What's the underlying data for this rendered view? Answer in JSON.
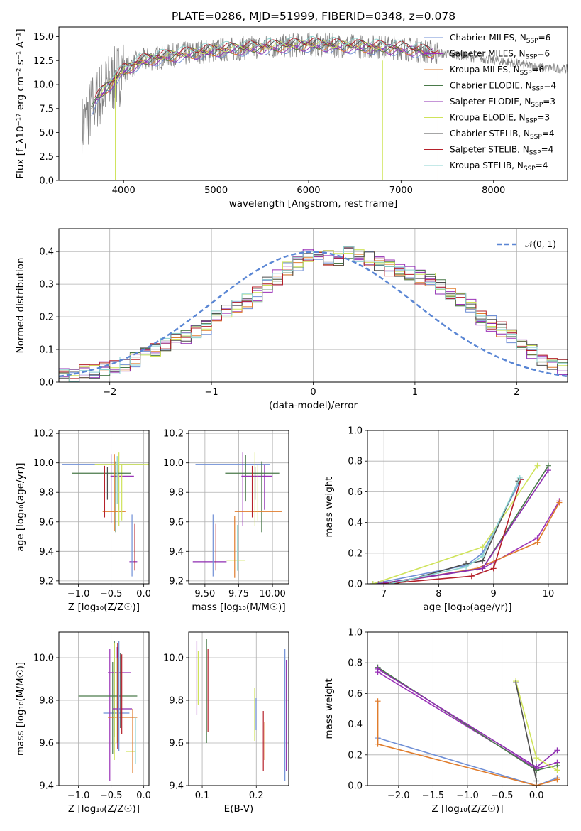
{
  "page_title": "PLATE=0286, MJD=51999, FIBERID=0348, z=0.078",
  "colors": [
    "#6f8fd6",
    "#9b32b8",
    "#e07c2c",
    "#4a7a4a",
    "#8e2cb0",
    "#cfe35a",
    "#4c4c4c",
    "#b5202a",
    "#8bd3d0"
  ],
  "chart_data": [
    {
      "id": "spectrum",
      "type": "line",
      "title": "PLATE=0286, MJD=51999, FIBERID=0348, z=0.078",
      "xlabel": "wavelength [Angstrom, rest frame]",
      "ylabel": "Flux [f_λ10⁻¹⁷ erg cm⁻² s⁻¹ A⁻¹]",
      "xlim": [
        3300,
        8800
      ],
      "ylim": [
        0,
        16
      ],
      "xticks": [
        "4000",
        "5000",
        "6000",
        "7000",
        "8000"
      ],
      "yticks": [
        "0.0",
        "2.5",
        "5.0",
        "7.5",
        "10.0",
        "12.5",
        "15.0"
      ],
      "grid": false,
      "legend_position": "top-right",
      "legend": [
        {
          "label": "Chabrier MILES, N",
          "sub": "SSP",
          "tail": "=6"
        },
        {
          "label": "Salpeter MILES, N",
          "sub": "SSP",
          "tail": "=6"
        },
        {
          "label": "Kroupa MILES, N",
          "sub": "SSP",
          "tail": "=6"
        },
        {
          "label": "Chabrier ELODIE, N",
          "sub": "SSP",
          "tail": "=4"
        },
        {
          "label": "Salpeter ELODIE, N",
          "sub": "SSP",
          "tail": "=3"
        },
        {
          "label": "Kroupa ELODIE, N",
          "sub": "SSP",
          "tail": "=3"
        },
        {
          "label": "Chabrier STELIB, N",
          "sub": "SSP",
          "tail": "=4"
        },
        {
          "label": "Salpeter STELIB, N",
          "sub": "SSP",
          "tail": "=4"
        },
        {
          "label": "Kroupa STELIB, N",
          "sub": "SSP",
          "tail": "=4"
        }
      ],
      "data_continuum": {
        "x": [
          3550,
          3700,
          3900,
          4000,
          4200,
          4500,
          5000,
          5500,
          6000,
          6500,
          7000,
          7400,
          7800,
          8200,
          8500,
          8800
        ],
        "y": [
          5.5,
          8.5,
          10.5,
          11.5,
          12.5,
          13.0,
          13.6,
          13.9,
          14.2,
          14.0,
          13.8,
          13.3,
          12.8,
          12.3,
          11.8,
          11.6
        ]
      }
    },
    {
      "id": "residuals",
      "type": "bar",
      "xlabel": "(data-model)/error",
      "ylabel": "Normed distribution",
      "xlim": [
        -2.5,
        2.5
      ],
      "ylim": [
        0,
        0.47
      ],
      "xticks": [
        "−2",
        "−1",
        "0",
        "1",
        "2"
      ],
      "yticks": [
        "0.0",
        "0.1",
        "0.2",
        "0.3",
        "0.4"
      ],
      "grid": true,
      "legend_position": "top-right",
      "legend": [
        {
          "label": "𝒩(0, 1)"
        }
      ],
      "bin_width": 0.1,
      "bin_start": -2.5,
      "model_counts": [
        0.02,
        0.025,
        0.03,
        0.035,
        0.04,
        0.05,
        0.058,
        0.07,
        0.09,
        0.1,
        0.11,
        0.125,
        0.135,
        0.155,
        0.17,
        0.2,
        0.215,
        0.235,
        0.25,
        0.27,
        0.3,
        0.32,
        0.345,
        0.36,
        0.385,
        0.4,
        0.38,
        0.375,
        0.395,
        0.39,
        0.38,
        0.36,
        0.35,
        0.345,
        0.33,
        0.32,
        0.31,
        0.29,
        0.27,
        0.25,
        0.23,
        0.2,
        0.18,
        0.16,
        0.14,
        0.12,
        0.095,
        0.07,
        0.06,
        0.045
      ]
    },
    {
      "id": "age_vs_Z",
      "type": "scatter",
      "xlabel": "Z [log₁₀(Z/Z☉)]",
      "ylabel": "age  [log₁₀(age/yr)]",
      "xlim": [
        -1.3,
        0.08
      ],
      "ylim": [
        9.18,
        10.22
      ],
      "xticks": [
        "−1.0",
        "−0.5",
        "0.0"
      ],
      "yticks": [
        "9.2",
        "9.4",
        "9.6",
        "9.8",
        "10.0",
        "10.2"
      ],
      "grid": true,
      "points": [
        {
          "x": -0.5,
          "y": 9.99,
          "xerr": [
            0.75,
            0.5
          ],
          "yerr": [
            0.4,
            0.07
          ]
        },
        {
          "x": -0.43,
          "y": 9.91,
          "xerr": [
            0.08,
            0.28
          ],
          "yerr": [
            0.38,
            0.1
          ]
        },
        {
          "x": -0.38,
          "y": 9.67,
          "xerr": [
            0.25,
            0.1
          ],
          "yerr": [
            0.1,
            0.4
          ]
        },
        {
          "x": -0.6,
          "y": 9.93,
          "xerr": [
            0.5,
            0.4
          ],
          "yerr": [
            0.3,
            0.05
          ]
        },
        {
          "x": -0.18,
          "y": 9.33,
          "xerr": [
            0.04,
            0.08
          ],
          "yerr": [
            0.1,
            0.32
          ]
        },
        {
          "x": -0.45,
          "y": 9.99,
          "xerr": [
            0.3,
            0.55
          ],
          "yerr": [
            0.45,
            0.07
          ]
        }
      ]
    },
    {
      "id": "age_vs_mass",
      "type": "scatter",
      "xlabel": "mass [log₁₀(M/M☉)]",
      "ylabel": "",
      "xlim": [
        9.38,
        10.12
      ],
      "ylim": [
        9.18,
        10.22
      ],
      "xticks": [
        "9.50",
        "9.75",
        "10.00"
      ],
      "yticks": [
        "9.2",
        "9.4",
        "9.6",
        "9.8",
        "10.0",
        "10.2"
      ],
      "grid": true,
      "points": [
        {
          "x": 9.78,
          "y": 9.99,
          "xerr": [
            0.35,
            0.2
          ],
          "yerr": [
            0.42,
            0.08
          ]
        },
        {
          "x": 9.92,
          "y": 9.91,
          "xerr": [
            0.15,
            0.08
          ],
          "yerr": [
            0.38,
            0.1
          ]
        },
        {
          "x": 9.87,
          "y": 9.67,
          "xerr": [
            0.15,
            0.2
          ],
          "yerr": [
            0.1,
            0.4
          ]
        },
        {
          "x": 9.85,
          "y": 9.93,
          "xerr": [
            0.2,
            0.2
          ],
          "yerr": [
            0.3,
            0.05
          ]
        },
        {
          "x": 9.56,
          "y": 9.33,
          "xerr": [
            0.15,
            0.1
          ],
          "yerr": [
            0.1,
            0.32
          ]
        },
        {
          "x": 9.72,
          "y": 9.34,
          "xerr": [
            0.06,
            0.08
          ],
          "yerr": [
            0.12,
            0.3
          ]
        }
      ]
    },
    {
      "id": "mw_vs_age",
      "type": "line",
      "xlabel": "age  [log₁₀(age/yr)]",
      "ylabel": "mass weight",
      "xlim": [
        6.7,
        10.35
      ],
      "ylim": [
        0,
        1
      ],
      "xticks": [
        "7",
        "8",
        "9",
        "10"
      ],
      "yticks": [
        "0.0",
        "0.2",
        "0.4",
        "0.6",
        "0.8",
        "1.0"
      ],
      "grid": true,
      "series": [
        {
          "x": [
            6.8,
            8.5,
            8.8,
            9.5
          ],
          "y": [
            0.0,
            0.12,
            0.2,
            0.68
          ]
        },
        {
          "x": [
            7.0,
            8.8,
            9.8,
            10.2
          ],
          "y": [
            0.0,
            0.1,
            0.3,
            0.54
          ]
        },
        {
          "x": [
            7.0,
            8.7,
            9.8,
            10.2
          ],
          "y": [
            0.0,
            0.1,
            0.27,
            0.53
          ]
        },
        {
          "x": [
            6.9,
            8.8,
            10.0
          ],
          "y": [
            0.0,
            0.1,
            0.77
          ]
        },
        {
          "x": [
            6.9,
            8.8,
            10.0
          ],
          "y": [
            0.0,
            0.1,
            0.74
          ]
        },
        {
          "x": [
            6.8,
            8.8,
            9.8
          ],
          "y": [
            0.0,
            0.24,
            0.77
          ]
        },
        {
          "x": [
            7.2,
            8.5,
            8.8,
            9.45
          ],
          "y": [
            0.0,
            0.13,
            0.15,
            0.67
          ]
        },
        {
          "x": [
            7.0,
            8.6,
            9.0,
            9.5
          ],
          "y": [
            0.0,
            0.05,
            0.1,
            0.68
          ]
        },
        {
          "x": [
            7.1,
            8.5,
            8.8,
            9.48
          ],
          "y": [
            0.0,
            0.11,
            0.18,
            0.69
          ]
        }
      ]
    },
    {
      "id": "mass_vs_Z",
      "type": "scatter",
      "xlabel": "Z [log₁₀(Z/Z☉)]",
      "ylabel": "mass [log₁₀(M/M☉)]",
      "xlim": [
        -1.3,
        0.08
      ],
      "ylim": [
        9.4,
        10.12
      ],
      "xticks": [
        "−1.0",
        "−0.5",
        "0.0"
      ],
      "yticks": [
        "9.4",
        "9.6",
        "9.8",
        "10.0"
      ],
      "grid": true,
      "points": [
        {
          "x": -0.52,
          "y": 9.74,
          "xerr": [
            0.1,
            0.3
          ],
          "yerr": [
            0.32,
            0.3
          ]
        },
        {
          "x": -0.45,
          "y": 9.93,
          "xerr": [
            0.1,
            0.25
          ],
          "yerr": [
            0.3,
            0.15
          ]
        },
        {
          "x": -0.45,
          "y": 9.72,
          "xerr": [
            0.1,
            0.35
          ],
          "yerr": [
            0.2,
            0.35
          ]
        },
        {
          "x": -0.4,
          "y": 9.82,
          "xerr": [
            0.6,
            0.3
          ],
          "yerr": [
            0.25,
            0.25
          ]
        },
        {
          "x": -0.38,
          "y": 9.76,
          "xerr": [
            0.1,
            0.2
          ],
          "yerr": [
            0.2,
            0.32
          ]
        },
        {
          "x": -0.17,
          "y": 9.56,
          "xerr": [
            0.1,
            0.05
          ],
          "yerr": [
            0.1,
            0.2
          ]
        }
      ]
    },
    {
      "id": "mass_vs_ebv",
      "type": "scatter",
      "xlabel": "E(B-V)",
      "ylabel": "",
      "xlim": [
        0.075,
        0.26
      ],
      "ylim": [
        9.4,
        10.12
      ],
      "xticks": [
        "0.1",
        "0.2"
      ],
      "yticks": [
        "9.4",
        "9.6",
        "9.8",
        "10.0"
      ],
      "grid": true,
      "errorbars": [
        {
          "x": 0.09,
          "y0": 9.73,
          "y1": 10.08
        },
        {
          "x": 0.108,
          "y0": 9.6,
          "y1": 10.09
        },
        {
          "x": 0.197,
          "y0": 9.61,
          "y1": 9.86
        },
        {
          "x": 0.213,
          "y0": 9.47,
          "y1": 9.75
        },
        {
          "x": 0.253,
          "y0": 9.42,
          "y1": 10.04
        }
      ]
    },
    {
      "id": "mw_vs_Z",
      "type": "line",
      "xlabel": "Z [log₁₀(Z/Z☉)]",
      "ylabel": "mass weight",
      "xlim": [
        -2.45,
        0.45
      ],
      "ylim": [
        0,
        1
      ],
      "xticks": [
        "−2.0",
        "−1.5",
        "−1.0",
        "−0.5",
        "0.0"
      ],
      "yticks": [
        "0.0",
        "0.2",
        "0.4",
        "0.6",
        "0.8",
        "1.0"
      ],
      "grid": true,
      "series": [
        {
          "x": [
            -2.3,
            0.0,
            0.3
          ],
          "y": [
            0.31,
            0.0,
            0.05
          ]
        },
        {
          "x": [
            -2.3,
            0.0,
            0.3
          ],
          "y": [
            0.74,
            0.11,
            0.15
          ]
        },
        {
          "x": [
            -2.3,
            -2.3,
            0.0,
            0.3
          ],
          "y": [
            0.55,
            0.27,
            0.0,
            0.04
          ]
        },
        {
          "x": [
            -2.3,
            0.0,
            0.3
          ],
          "y": [
            0.77,
            0.1,
            0.13
          ]
        },
        {
          "x": [
            -2.3,
            0.0,
            0.3
          ],
          "y": [
            0.76,
            0.12,
            0.23
          ]
        },
        {
          "x": [
            -0.3,
            0.0,
            0.3
          ],
          "y": [
            0.68,
            0.18,
            0.1
          ]
        },
        {
          "x": [
            -0.3,
            0.0
          ],
          "y": [
            0.67,
            0.03
          ]
        }
      ]
    }
  ]
}
